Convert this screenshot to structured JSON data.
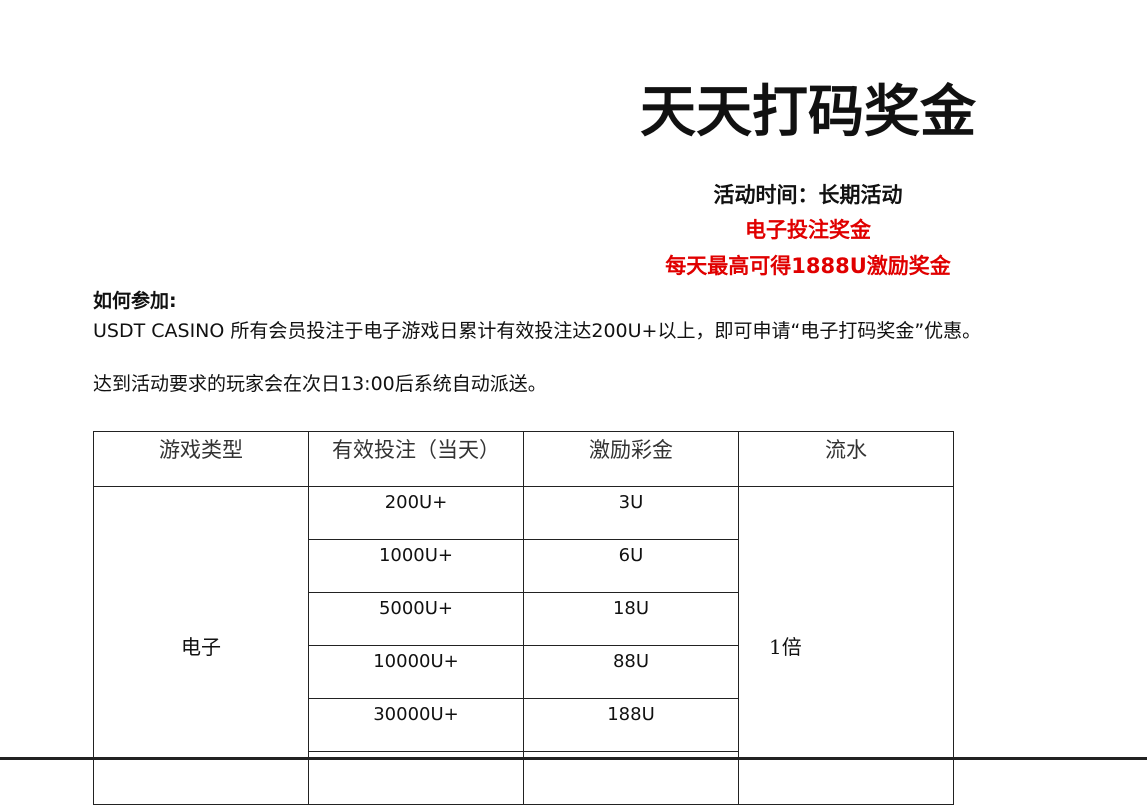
{
  "title": "天天打码奖金",
  "time": "活动时间：长期活动",
  "red_lines": [
    "电子投注奖金",
    "每天最高可得1888U激励奖金"
  ],
  "how_title": "如何参加:",
  "para1": "USDT CASINO 所有会员投注于电子游戏日累计有效投注达200U+以上，即可申请“电子打码奖金”优惠。",
  "para2": "达到活动要求的玩家会在次日13:00后系统自动派送。",
  "table": {
    "headers": [
      "游戏类型",
      "有效投注（当天）",
      "激励彩金",
      "流水"
    ],
    "game_type": "电子",
    "turnover": "1倍",
    "rows": [
      {
        "bet": "200U+",
        "bonus": "3U"
      },
      {
        "bet": "1000U+",
        "bonus": "6U"
      },
      {
        "bet": "5000U+",
        "bonus": "18U"
      },
      {
        "bet": "10000U+",
        "bonus": "88U"
      },
      {
        "bet": "30000U+",
        "bonus": "188U"
      }
    ]
  },
  "colors": {
    "red": "#e00000"
  }
}
